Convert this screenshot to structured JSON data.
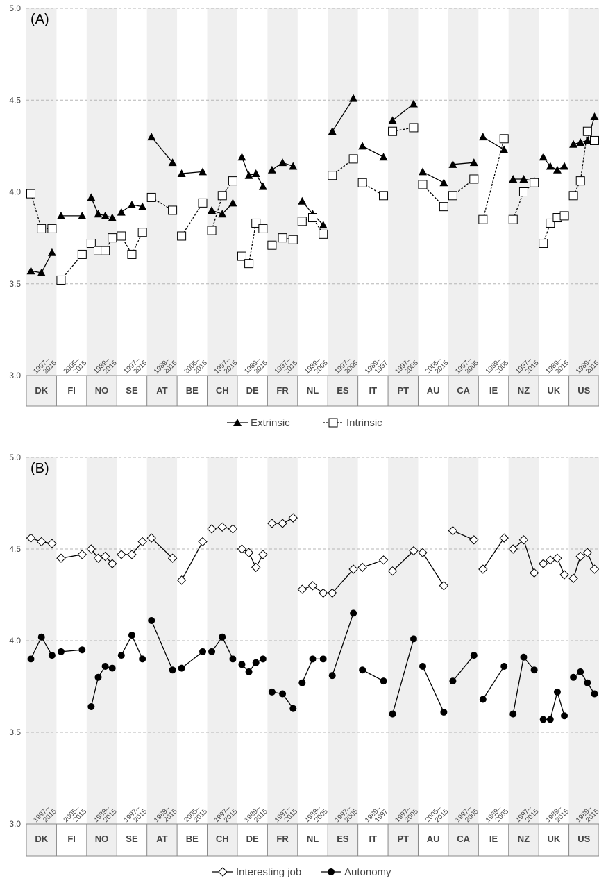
{
  "chart_data": [
    {
      "panel": "(A)",
      "type": "line",
      "ylim": [
        3.0,
        5.0
      ],
      "yticks": [
        "3.0",
        "3.5",
        "4.0",
        "4.5",
        "5.0"
      ],
      "grid": true,
      "legend": "bottom-center",
      "legend_entries": [
        "Extrinsic",
        "Intrinsic"
      ],
      "countries": [
        {
          "code": "DK",
          "period": "1997–2015",
          "Extrinsic": [
            3.57,
            3.56,
            3.67
          ],
          "Intrinsic": [
            3.99,
            3.8,
            3.8
          ]
        },
        {
          "code": "FI",
          "period": "2005–2015",
          "Extrinsic": [
            3.87,
            3.87
          ],
          "Intrinsic": [
            3.52,
            3.66
          ]
        },
        {
          "code": "NO",
          "period": "1989–2015",
          "Extrinsic": [
            3.97,
            3.88,
            3.87,
            3.86
          ],
          "Intrinsic": [
            3.72,
            3.68,
            3.68,
            3.75
          ]
        },
        {
          "code": "SE",
          "period": "1997–2015",
          "Extrinsic": [
            3.89,
            3.93,
            3.92
          ],
          "Intrinsic": [
            3.76,
            3.66,
            3.78
          ]
        },
        {
          "code": "AT",
          "period": "1989–2015",
          "Extrinsic": [
            4.3,
            4.16
          ],
          "Intrinsic": [
            3.97,
            3.9
          ]
        },
        {
          "code": "BE",
          "period": "2005–2015",
          "Extrinsic": [
            4.1,
            4.11
          ],
          "Intrinsic": [
            3.76,
            3.94
          ]
        },
        {
          "code": "CH",
          "period": "1997–2015",
          "Extrinsic": [
            3.9,
            3.88,
            3.94
          ],
          "Intrinsic": [
            3.79,
            3.98,
            4.06
          ]
        },
        {
          "code": "DE",
          "period": "1989–2015",
          "Extrinsic": [
            4.19,
            4.09,
            4.1,
            4.03
          ],
          "Intrinsic": [
            3.65,
            3.61,
            3.83,
            3.8
          ]
        },
        {
          "code": "FR",
          "period": "1997–2015",
          "Extrinsic": [
            4.12,
            4.16,
            4.14
          ],
          "Intrinsic": [
            3.71,
            3.75,
            3.74
          ]
        },
        {
          "code": "NL",
          "period": "1989–2005",
          "Extrinsic": [
            3.95,
            3.88,
            3.82
          ],
          "Intrinsic": [
            3.84,
            3.86,
            3.77
          ]
        },
        {
          "code": "ES",
          "period": "1997–2005",
          "Extrinsic": [
            4.33,
            4.51
          ],
          "Intrinsic": [
            4.09,
            4.18
          ]
        },
        {
          "code": "IT",
          "period": "1989–1997",
          "Extrinsic": [
            4.25,
            4.19
          ],
          "Intrinsic": [
            4.05,
            3.98
          ]
        },
        {
          "code": "PT",
          "period": "1997–2005",
          "Extrinsic": [
            4.39,
            4.48
          ],
          "Intrinsic": [
            4.33,
            4.35
          ]
        },
        {
          "code": "AU",
          "period": "2005–2015",
          "Extrinsic": [
            4.11,
            4.05
          ],
          "Intrinsic": [
            4.04,
            3.92
          ]
        },
        {
          "code": "CA",
          "period": "1997–2005",
          "Extrinsic": [
            4.15,
            4.16
          ],
          "Intrinsic": [
            3.98,
            4.07
          ]
        },
        {
          "code": "IE",
          "period": "1989–2005",
          "Extrinsic": [
            4.3,
            4.23
          ],
          "Intrinsic": [
            3.85,
            4.29
          ]
        },
        {
          "code": "NZ",
          "period": "1997–2015",
          "Extrinsic": [
            4.07,
            4.07,
            4.06
          ],
          "Intrinsic": [
            3.85,
            4.0,
            4.05
          ]
        },
        {
          "code": "UK",
          "period": "1989–2015",
          "Extrinsic": [
            4.19,
            4.14,
            4.12,
            4.14
          ],
          "Intrinsic": [
            3.72,
            3.83,
            3.86,
            3.87
          ]
        },
        {
          "code": "US",
          "period": "1989–2015",
          "Extrinsic": [
            4.26,
            4.27,
            4.28,
            4.41
          ],
          "Intrinsic": [
            3.98,
            4.06,
            4.33,
            4.28
          ]
        }
      ]
    },
    {
      "panel": "(B)",
      "type": "line",
      "ylim": [
        3.0,
        5.0
      ],
      "yticks": [
        "3.0",
        "3.5",
        "4.0",
        "4.5",
        "5.0"
      ],
      "grid": true,
      "legend": "bottom-center",
      "legend_entries": [
        "Interesting job",
        "Autonomy"
      ],
      "countries": [
        {
          "code": "DK",
          "period": "1997–2015",
          "Interesting job": [
            4.56,
            4.54,
            4.53
          ],
          "Autonomy": [
            3.9,
            4.02,
            3.92
          ]
        },
        {
          "code": "FI",
          "period": "2005–2015",
          "Interesting job": [
            4.45,
            4.47
          ],
          "Autonomy": [
            3.94,
            3.95
          ]
        },
        {
          "code": "NO",
          "period": "1989–2015",
          "Interesting job": [
            4.5,
            4.45,
            4.46,
            4.42
          ],
          "Autonomy": [
            3.64,
            3.8,
            3.86,
            3.85
          ]
        },
        {
          "code": "SE",
          "period": "1997–2015",
          "Interesting job": [
            4.47,
            4.47,
            4.54
          ],
          "Autonomy": [
            3.92,
            4.03,
            3.9
          ]
        },
        {
          "code": "AT",
          "period": "1989–2015",
          "Interesting job": [
            4.56,
            4.45
          ],
          "Autonomy": [
            4.11,
            3.84
          ]
        },
        {
          "code": "BE",
          "period": "2005–2015",
          "Interesting job": [
            4.33,
            4.54
          ],
          "Autonomy": [
            3.85,
            3.94
          ]
        },
        {
          "code": "CH",
          "period": "1997–2015",
          "Interesting job": [
            4.61,
            4.62,
            4.61
          ],
          "Autonomy": [
            3.94,
            4.02,
            3.9
          ]
        },
        {
          "code": "DE",
          "period": "1989–2015",
          "Interesting job": [
            4.5,
            4.48,
            4.4,
            4.47
          ],
          "Autonomy": [
            3.87,
            3.83,
            3.88,
            3.9
          ]
        },
        {
          "code": "FR",
          "period": "1997–2015",
          "Interesting job": [
            4.64,
            4.64,
            4.67
          ],
          "Autonomy": [
            3.72,
            3.71,
            3.63
          ]
        },
        {
          "code": "NL",
          "period": "1989–2005",
          "Interesting job": [
            4.28,
            4.3,
            4.26
          ],
          "Autonomy": [
            3.77,
            3.9,
            3.9
          ]
        },
        {
          "code": "ES",
          "period": "1997–2005",
          "Interesting job": [
            4.26,
            4.39
          ],
          "Autonomy": [
            3.81,
            4.15
          ]
        },
        {
          "code": "IT",
          "period": "1989–1997",
          "Interesting job": [
            4.4,
            4.44
          ],
          "Autonomy": [
            3.84,
            3.78
          ]
        },
        {
          "code": "PT",
          "period": "1997–2005",
          "Interesting job": [
            4.38,
            4.49
          ],
          "Autonomy": [
            3.6,
            4.01
          ]
        },
        {
          "code": "AU",
          "period": "2005–2015",
          "Interesting job": [
            4.48,
            4.3
          ],
          "Autonomy": [
            3.86,
            3.61
          ]
        },
        {
          "code": "CA",
          "period": "1997–2005",
          "Interesting job": [
            4.6,
            4.55
          ],
          "Autonomy": [
            3.78,
            3.92
          ]
        },
        {
          "code": "IE",
          "period": "1989–2005",
          "Interesting job": [
            4.39,
            4.56
          ],
          "Autonomy": [
            3.68,
            3.86
          ]
        },
        {
          "code": "NZ",
          "period": "1997–2015",
          "Interesting job": [
            4.5,
            4.55,
            4.37
          ],
          "Autonomy": [
            3.6,
            3.91,
            3.84
          ]
        },
        {
          "code": "UK",
          "period": "1989–2015",
          "Interesting job": [
            4.42,
            4.44,
            4.45,
            4.36
          ],
          "Autonomy": [
            3.57,
            3.57,
            3.72,
            3.59
          ]
        },
        {
          "code": "US",
          "period": "1989–2015",
          "Interesting job": [
            4.34,
            4.46,
            4.48,
            4.39
          ],
          "Autonomy": [
            3.8,
            3.83,
            3.77,
            3.71
          ]
        }
      ]
    }
  ],
  "style": {
    "band_color": "#efefef",
    "grid_color": "#b5b5b5",
    "mark_color": "#000000",
    "axis_text_color": "#444444"
  }
}
